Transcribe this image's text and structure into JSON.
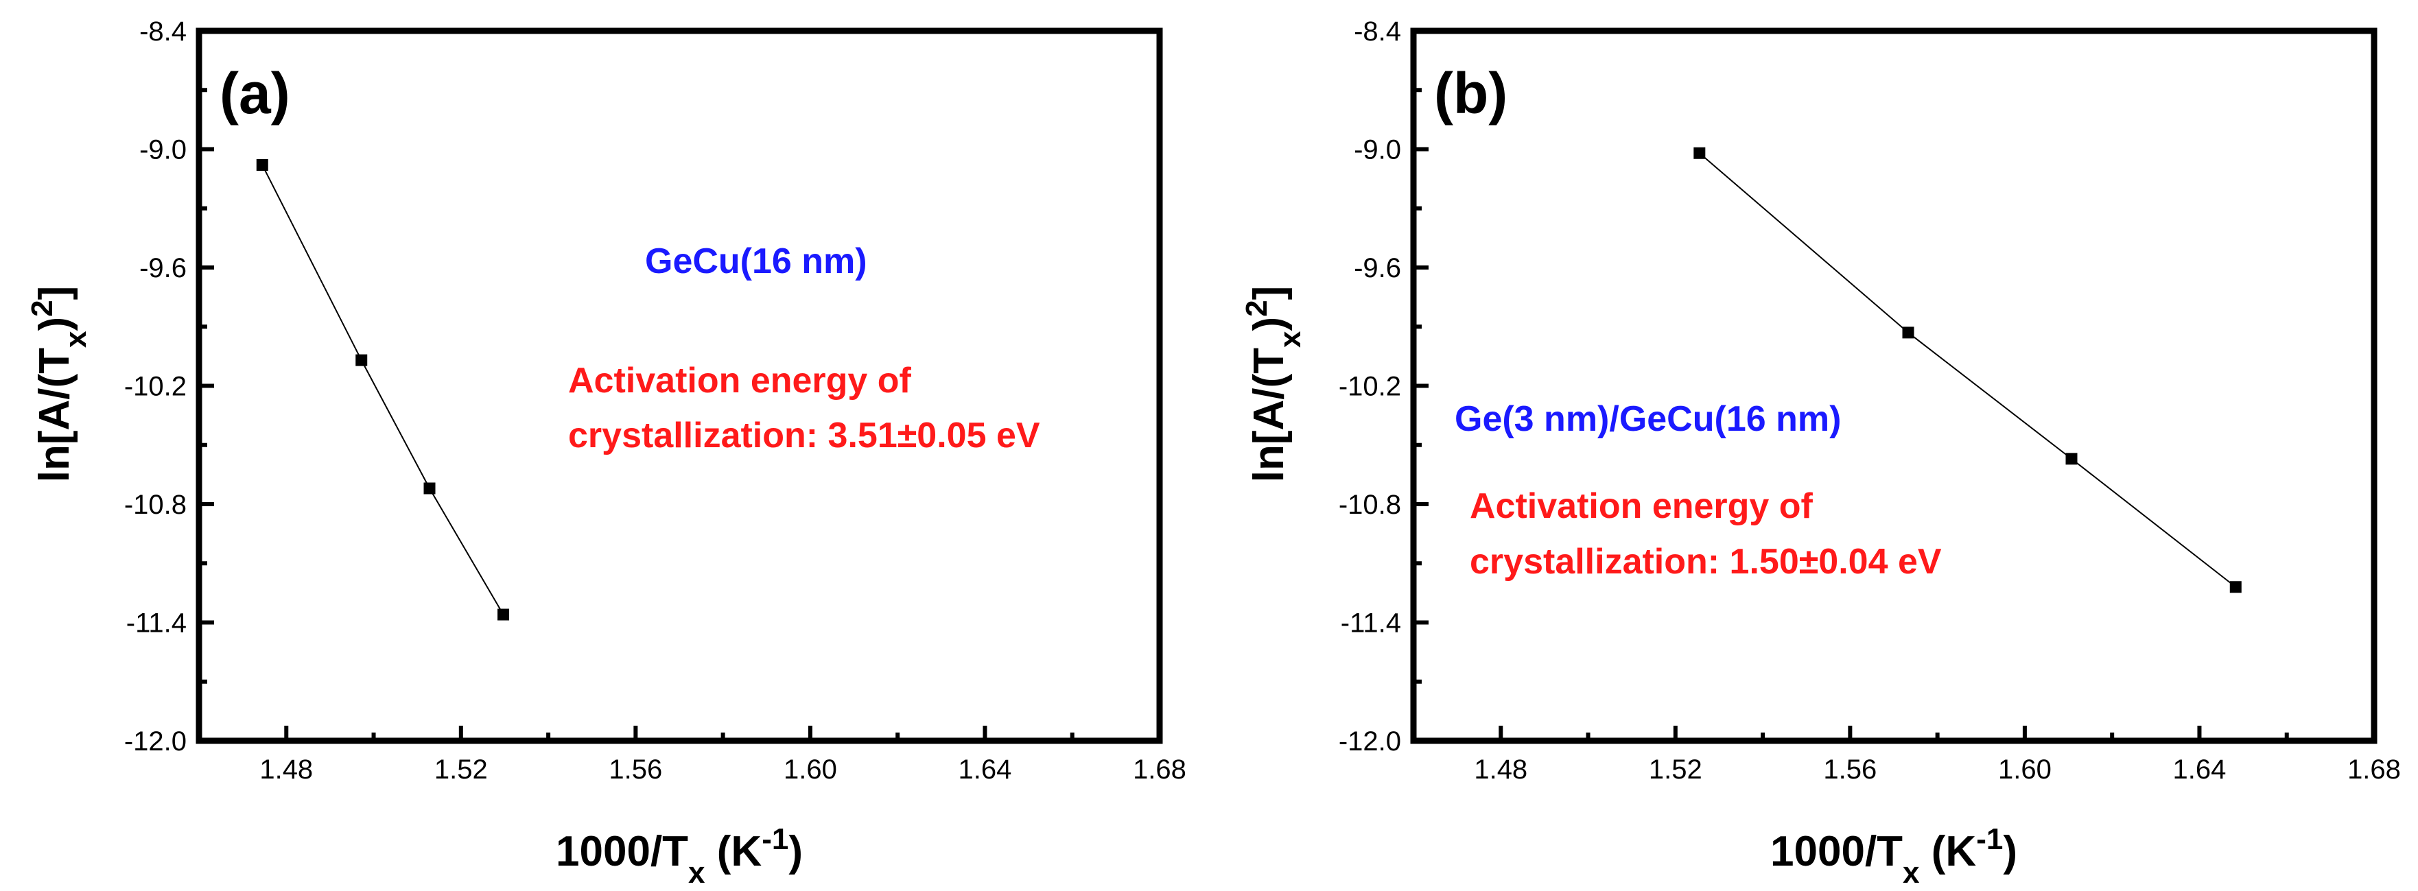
{
  "chart_data": [
    {
      "panel_label": "(a)",
      "type": "line",
      "marker": "square",
      "x": [
        1.4745,
        1.4972,
        1.5128,
        1.5297
      ],
      "y": [
        -9.08,
        -10.07,
        -10.72,
        -11.36
      ],
      "xlim": [
        1.46,
        1.68
      ],
      "ylim": [
        -12.0,
        -8.4
      ],
      "xticks": [
        "1.48",
        "1.52",
        "1.56",
        "1.60",
        "1.64",
        "1.68"
      ],
      "yticks": [
        "-8.4",
        "-9.0",
        "-9.6",
        "-10.2",
        "-10.8",
        "-11.4",
        "-12.0"
      ],
      "xlabel": {
        "main": "1000/T",
        "sub": "x",
        "unit_open": " (K",
        "sup": "-1",
        "unit_close": ")"
      },
      "ylabel": {
        "main": "ln[A/(T",
        "sub": "x",
        "close": ")",
        "sup": "2",
        "end": "]"
      },
      "sample_label": "GeCu(16 nm)",
      "energy_line1": "Activation energy of",
      "energy_line2": "crystallization: 3.51±0.05 eV",
      "sample_color": "#1a1aff",
      "energy_color": "#ff1a1a"
    },
    {
      "panel_label": "(b)",
      "type": "line",
      "marker": "square",
      "x": [
        1.5255,
        1.5733,
        1.6107,
        1.6483
      ],
      "y": [
        -9.02,
        -9.93,
        -10.57,
        -11.22
      ],
      "xlim": [
        1.46,
        1.68
      ],
      "ylim": [
        -12.0,
        -8.4
      ],
      "xticks": [
        "1.48",
        "1.52",
        "1.56",
        "1.60",
        "1.64",
        "1.68"
      ],
      "yticks": [
        "-8.4",
        "-9.0",
        "-9.6",
        "-10.2",
        "-10.8",
        "-11.4",
        "-12.0"
      ],
      "xlabel": {
        "main": "1000/T",
        "sub": "x",
        "unit_open": " (K",
        "sup": "-1",
        "unit_close": ")"
      },
      "ylabel": {
        "main": "ln[A/(T",
        "sub": "x",
        "close": ")",
        "sup": "2",
        "end": "]"
      },
      "sample_label": "Ge(3 nm)/GeCu(16 nm)",
      "energy_line1": "Activation energy of",
      "energy_line2": "crystallization: 1.50±0.04 eV",
      "sample_color": "#1a1aff",
      "energy_color": "#ff1a1a"
    }
  ]
}
